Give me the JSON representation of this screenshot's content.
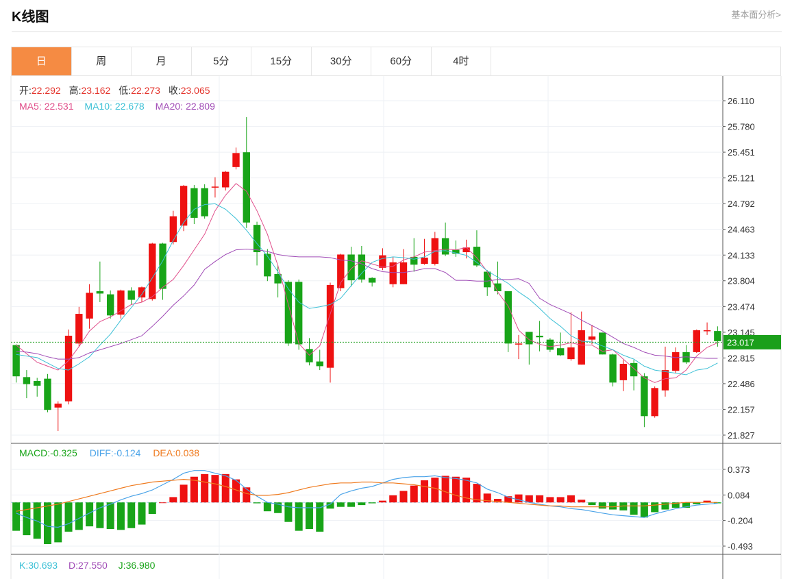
{
  "header": {
    "title": "K线图",
    "link": "基本面分析>"
  },
  "tabs": [
    {
      "label": "日",
      "active": true
    },
    {
      "label": "周"
    },
    {
      "label": "月"
    },
    {
      "label": "5分"
    },
    {
      "label": "15分"
    },
    {
      "label": "30分"
    },
    {
      "label": "60分"
    },
    {
      "label": "4时"
    }
  ],
  "colors": {
    "up": "#ee1111",
    "down": "#18a418",
    "ma5": "#e04d8a",
    "ma10": "#3cc0d6",
    "ma20": "#a04bb6",
    "diff": "#4aa3e8",
    "dea": "#ef7a1e",
    "price": "#1b9f1b",
    "tab_active": "#f58b43"
  },
  "chart_data": [
    {
      "type": "candlestick",
      "info": {
        "open_label": "开:",
        "open": "22.292",
        "high_label": "高:",
        "high": "23.162",
        "low_label": "低:",
        "low": "22.273",
        "close_label": "收:",
        "close": "23.065"
      },
      "ma": [
        {
          "label": "MA5:",
          "value": "22.531"
        },
        {
          "label": "MA10:",
          "value": "22.678"
        },
        {
          "label": "MA20:",
          "value": "22.809"
        }
      ],
      "y_ticks": [
        "26.110",
        "25.780",
        "25.451",
        "25.121",
        "24.792",
        "24.463",
        "24.133",
        "23.804",
        "23.474",
        "23.145",
        "22.815",
        "22.486",
        "22.157",
        "21.827"
      ],
      "ylim": [
        21.827,
        26.11
      ],
      "current_price": "23.017",
      "current_value": 23.017,
      "candles": [
        [
          22.98,
          22.58,
          22.99,
          22.5
        ],
        [
          22.57,
          22.48,
          22.66,
          22.3
        ],
        [
          22.52,
          22.46,
          22.56,
          22.32
        ],
        [
          22.55,
          22.15,
          22.61,
          22.12
        ],
        [
          22.18,
          22.23,
          22.26,
          21.88
        ],
        [
          22.26,
          23.1,
          23.18,
          22.22
        ],
        [
          23.0,
          23.38,
          23.47,
          22.96
        ],
        [
          23.32,
          23.65,
          23.76,
          23.19
        ],
        [
          23.67,
          23.64,
          24.05,
          23.53
        ],
        [
          23.63,
          23.36,
          23.68,
          23.32
        ],
        [
          23.37,
          23.68,
          23.69,
          23.32
        ],
        [
          23.68,
          23.56,
          23.72,
          23.5
        ],
        [
          23.59,
          23.72,
          23.73,
          23.53
        ],
        [
          23.57,
          24.28,
          24.29,
          23.55
        ],
        [
          24.28,
          23.7,
          24.29,
          23.56
        ],
        [
          24.3,
          24.63,
          24.7,
          24.27
        ],
        [
          24.51,
          25.02,
          25.03,
          24.44
        ],
        [
          24.99,
          24.61,
          25.03,
          24.53
        ],
        [
          24.99,
          24.63,
          25.04,
          24.6
        ],
        [
          25.0,
          25.01,
          25.13,
          24.87
        ],
        [
          25.0,
          25.2,
          25.21,
          24.96
        ],
        [
          25.26,
          25.44,
          25.51,
          25.23
        ],
        [
          25.45,
          24.55,
          25.9,
          24.48
        ],
        [
          24.52,
          24.17,
          24.56,
          24.0
        ],
        [
          24.15,
          23.86,
          24.21,
          23.8
        ],
        [
          23.89,
          23.77,
          24.0,
          23.59
        ],
        [
          23.79,
          23.0,
          23.81,
          22.97
        ],
        [
          23.79,
          22.99,
          23.82,
          22.92
        ],
        [
          22.93,
          22.76,
          23.07,
          22.72
        ],
        [
          22.77,
          22.71,
          22.92,
          22.66
        ],
        [
          22.69,
          23.75,
          23.78,
          22.5
        ],
        [
          23.71,
          24.14,
          24.15,
          23.67
        ],
        [
          24.14,
          23.81,
          24.24,
          23.73
        ],
        [
          24.14,
          23.82,
          24.25,
          23.78
        ],
        [
          23.84,
          23.78,
          23.85,
          23.73
        ],
        [
          23.97,
          24.13,
          24.22,
          23.94
        ],
        [
          23.76,
          24.04,
          24.11,
          23.72
        ],
        [
          23.76,
          24.04,
          24.21,
          23.76
        ],
        [
          24.11,
          24.01,
          24.35,
          23.92
        ],
        [
          24.02,
          24.1,
          24.34,
          24.01
        ],
        [
          24.02,
          24.35,
          24.43,
          24.0
        ],
        [
          24.35,
          24.14,
          24.55,
          24.12
        ],
        [
          24.2,
          24.15,
          24.32,
          24.11
        ],
        [
          24.17,
          24.23,
          24.33,
          24.09
        ],
        [
          24.24,
          24.0,
          24.45,
          23.98
        ],
        [
          23.92,
          23.72,
          23.94,
          23.61
        ],
        [
          23.77,
          23.67,
          24.05,
          23.63
        ],
        [
          23.67,
          23.0,
          23.67,
          22.89
        ],
        [
          23.0,
          23.0,
          23.11,
          22.8
        ],
        [
          23.15,
          22.99,
          23.11,
          22.73
        ],
        [
          23.1,
          23.08,
          23.29,
          22.9
        ],
        [
          23.05,
          22.92,
          23.07,
          22.89
        ],
        [
          22.94,
          22.85,
          23.14,
          22.84
        ],
        [
          22.8,
          22.95,
          23.4,
          22.78
        ],
        [
          22.73,
          23.17,
          23.41,
          22.73
        ],
        [
          23.05,
          23.09,
          23.24,
          22.99
        ],
        [
          23.14,
          22.86,
          23.14,
          22.86
        ],
        [
          22.86,
          22.5,
          22.87,
          22.45
        ],
        [
          22.53,
          22.74,
          22.79,
          22.39
        ],
        [
          22.75,
          22.58,
          22.79,
          22.4
        ],
        [
          22.58,
          22.07,
          22.62,
          21.93
        ],
        [
          22.07,
          22.43,
          22.45,
          22.05
        ],
        [
          22.4,
          22.66,
          22.96,
          22.32
        ],
        [
          22.65,
          22.89,
          22.95,
          22.62
        ],
        [
          22.89,
          22.76,
          22.98,
          22.74
        ],
        [
          22.89,
          23.17,
          23.18,
          22.88
        ],
        [
          23.16,
          23.17,
          23.27,
          23.11
        ],
        [
          23.16,
          23.03,
          23.22,
          22.96
        ]
      ],
      "ma5": [
        22.98,
        22.87,
        22.76,
        22.71,
        22.66,
        22.78,
        22.96,
        23.16,
        23.28,
        23.34,
        23.42,
        23.5,
        23.53,
        23.6,
        23.72,
        23.82,
        24.0,
        24.2,
        24.4,
        24.7,
        24.9,
        25.05,
        24.95,
        24.7,
        24.4,
        24.0,
        23.5,
        23.0,
        22.85,
        22.97,
        23.38,
        23.78,
        23.96,
        24.06,
        24.02,
        23.98,
        23.99,
        24.07,
        24.11,
        24.17,
        24.19,
        24.21,
        24.2,
        24.23,
        24.1,
        23.92,
        23.66,
        23.48,
        23.17,
        23.05,
        22.99,
        22.96,
        22.98,
        23.01,
        22.98,
        22.98,
        22.9,
        22.92,
        22.8,
        22.68,
        22.56,
        22.5,
        22.55,
        22.56,
        22.66,
        22.84,
        22.95,
        23.01
      ],
      "ma10": [
        22.86,
        22.84,
        22.82,
        22.75,
        22.68,
        22.66,
        22.74,
        22.83,
        22.98,
        23.12,
        23.3,
        23.46,
        23.63,
        23.84,
        24.06,
        24.32,
        24.55,
        24.72,
        24.78,
        24.79,
        24.72,
        24.6,
        24.45,
        24.28,
        24.12,
        23.92,
        23.7,
        23.53,
        23.45,
        23.47,
        23.5,
        23.58,
        23.74,
        23.9,
        24.04,
        24.09,
        24.11,
        24.1,
        24.08,
        24.11,
        24.18,
        24.19,
        24.16,
        24.13,
        24.04,
        23.93,
        23.85,
        23.77,
        23.66,
        23.57,
        23.45,
        23.32,
        23.22,
        23.1,
        23.03,
        23.02,
        22.97,
        22.92,
        22.85,
        22.8,
        22.71,
        22.66,
        22.64,
        22.62,
        22.6,
        22.66,
        22.68,
        22.75
      ],
      "ma20": [
        22.9,
        22.89,
        22.87,
        22.83,
        22.8,
        22.8,
        22.82,
        22.88,
        22.92,
        22.96,
        23.0,
        23.05,
        23.1,
        23.22,
        23.35,
        23.49,
        23.61,
        23.75,
        23.95,
        24.05,
        24.14,
        24.2,
        24.21,
        24.2,
        24.18,
        24.14,
        24.12,
        24.11,
        24.11,
        24.11,
        24.1,
        24.07,
        24.06,
        24.02,
        23.96,
        23.92,
        23.91,
        23.91,
        23.93,
        23.96,
        23.96,
        23.91,
        23.81,
        23.81,
        23.8,
        23.8,
        23.82,
        23.82,
        23.83,
        23.77,
        23.58,
        23.5,
        23.44,
        23.38,
        23.3,
        23.23,
        23.16,
        23.08,
        23.0,
        22.95,
        22.89,
        22.85,
        22.84,
        22.82,
        22.83,
        22.82,
        22.81,
        22.81
      ]
    },
    {
      "type": "bar",
      "macd": {
        "label": "MACD:",
        "value": "-0.325"
      },
      "diff": {
        "label": "DIFF:",
        "value": "-0.124"
      },
      "dea": {
        "label": "DEA:",
        "value": "0.038"
      },
      "y_ticks": [
        "0.373",
        "0.084",
        "-0.204",
        "-0.493"
      ],
      "ylim": [
        -0.493,
        0.373
      ],
      "histogram": [
        -0.32,
        -0.37,
        -0.41,
        -0.47,
        -0.45,
        -0.33,
        -0.31,
        -0.27,
        -0.29,
        -0.3,
        -0.31,
        -0.29,
        -0.25,
        -0.13,
        0.0,
        0.06,
        0.2,
        0.29,
        0.32,
        0.31,
        0.32,
        0.26,
        0.17,
        -0.01,
        -0.1,
        -0.12,
        -0.22,
        -0.32,
        -0.3,
        -0.33,
        -0.07,
        -0.05,
        -0.05,
        -0.03,
        -0.01,
        0.02,
        0.08,
        0.13,
        0.19,
        0.25,
        0.28,
        0.3,
        0.29,
        0.28,
        0.21,
        0.1,
        0.04,
        0.07,
        0.09,
        0.08,
        0.08,
        0.06,
        0.06,
        0.08,
        0.03,
        -0.03,
        -0.07,
        -0.08,
        -0.09,
        -0.14,
        -0.17,
        -0.11,
        -0.08,
        -0.06,
        -0.06,
        -0.02,
        0.02,
        -0.01
      ],
      "diff_line": [
        -0.12,
        -0.17,
        -0.21,
        -0.27,
        -0.28,
        -0.24,
        -0.18,
        -0.12,
        -0.06,
        -0.02,
        0.03,
        0.07,
        0.1,
        0.14,
        0.2,
        0.26,
        0.33,
        0.36,
        0.36,
        0.33,
        0.3,
        0.25,
        0.15,
        0.07,
        0.0,
        -0.02,
        -0.05,
        -0.06,
        -0.06,
        -0.06,
        -0.02,
        0.09,
        0.13,
        0.16,
        0.18,
        0.22,
        0.26,
        0.28,
        0.29,
        0.29,
        0.3,
        0.28,
        0.27,
        0.25,
        0.22,
        0.15,
        0.11,
        0.06,
        0.03,
        0.0,
        -0.02,
        -0.04,
        -0.05,
        -0.07,
        -0.08,
        -0.1,
        -0.12,
        -0.14,
        -0.15,
        -0.16,
        -0.17,
        -0.13,
        -0.1,
        -0.07,
        -0.05,
        -0.03,
        -0.02,
        -0.01
      ],
      "dea_line": [
        -0.1,
        -0.08,
        -0.06,
        -0.04,
        -0.02,
        0.01,
        0.04,
        0.07,
        0.1,
        0.13,
        0.16,
        0.19,
        0.21,
        0.23,
        0.24,
        0.25,
        0.26,
        0.25,
        0.23,
        0.21,
        0.18,
        0.14,
        0.1,
        0.08,
        0.08,
        0.09,
        0.11,
        0.14,
        0.17,
        0.19,
        0.21,
        0.22,
        0.22,
        0.23,
        0.23,
        0.22,
        0.22,
        0.21,
        0.2,
        0.18,
        0.16,
        0.12,
        0.08,
        0.05,
        0.03,
        0.02,
        0.01,
        0.0,
        -0.01,
        -0.02,
        -0.03,
        -0.04,
        -0.04,
        -0.05,
        -0.05,
        -0.05,
        -0.05,
        -0.05,
        -0.04,
        -0.04,
        -0.04,
        -0.03,
        -0.02,
        -0.01,
        0.0,
        0.0,
        0.0,
        0.0
      ]
    },
    {
      "type": "line",
      "k": {
        "label": "K:",
        "value": "30.693"
      },
      "d": {
        "label": "D:",
        "value": "27.550"
      },
      "j": {
        "label": "J:",
        "value": "36.980"
      }
    }
  ]
}
